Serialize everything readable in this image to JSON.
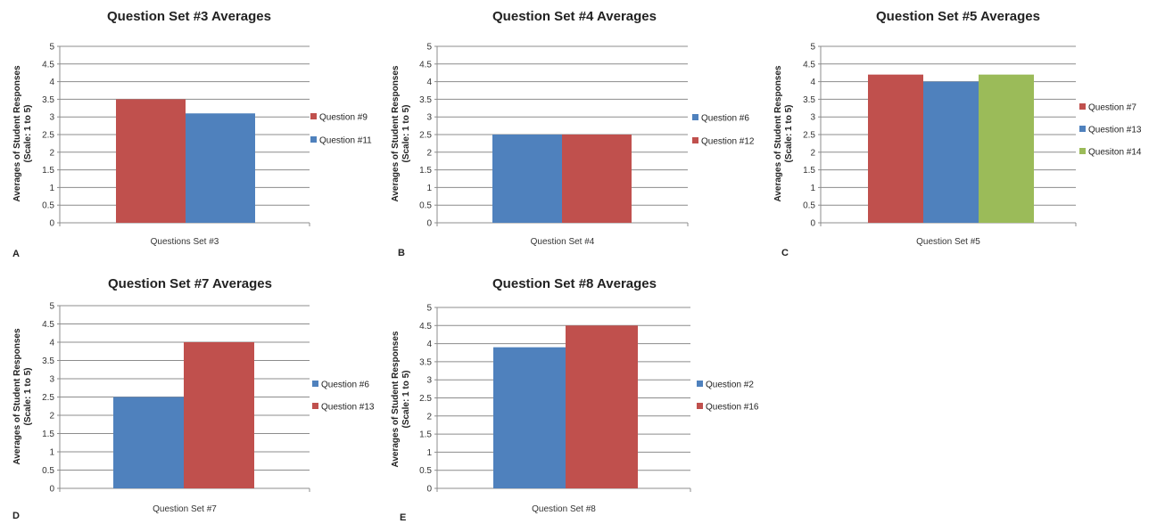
{
  "chart_data": [
    {
      "panel": "A",
      "type": "bar",
      "title": "Question Set #3 Averages",
      "ylabel": "Averages of Student Responses (Scale: 1 to 5)",
      "category": "Questions Set #3",
      "ylim": [
        0,
        5
      ],
      "yticks": [
        "0",
        "0.5",
        "1",
        "1.5",
        "2",
        "2.5",
        "3",
        "3.5",
        "4",
        "4.5",
        "5"
      ],
      "grid": true,
      "legend_position": "right",
      "series": [
        {
          "name": "Question #9",
          "value": 3.5,
          "color": "#c0504d"
        },
        {
          "name": "Question #11",
          "value": 3.1,
          "color": "#4f81bd"
        }
      ]
    },
    {
      "panel": "B",
      "type": "bar",
      "title": "Question Set #4 Averages",
      "ylabel": "Averages of Student Responses (Scale: 1 to 5)",
      "category": "Question Set #4",
      "ylim": [
        0,
        5
      ],
      "yticks": [
        "0",
        "0.5",
        "1",
        "1.5",
        "2",
        "2.5",
        "3",
        "3.5",
        "4",
        "4.5",
        "5"
      ],
      "grid": true,
      "legend_position": "right",
      "series": [
        {
          "name": "Question #6",
          "value": 2.5,
          "color": "#4f81bd"
        },
        {
          "name": "Question #12",
          "value": 2.5,
          "color": "#c0504d"
        }
      ]
    },
    {
      "panel": "C",
      "type": "bar",
      "title": "Question Set #5 Averages",
      "ylabel": "Averages of Student Responses (Scale: 1 to 5)",
      "category": "Question Set #5",
      "ylim": [
        0,
        5
      ],
      "yticks": [
        "0",
        "0.5",
        "1",
        "1.5",
        "2",
        "2.5",
        "3",
        "3.5",
        "4",
        "4.5",
        "5"
      ],
      "grid": true,
      "legend_position": "right",
      "series": [
        {
          "name": "Question #7",
          "value": 4.2,
          "color": "#c0504d"
        },
        {
          "name": "Question #13",
          "value": 4.0,
          "color": "#4f81bd"
        },
        {
          "name": "Quesiton #14",
          "value": 4.2,
          "color": "#9bbb59"
        }
      ]
    },
    {
      "panel": "D",
      "type": "bar",
      "title": "Question Set #7 Averages",
      "ylabel": "Averages of Student Responses (Scale: 1 to 5)",
      "category": "Question Set #7",
      "ylim": [
        0,
        5
      ],
      "yticks": [
        "0",
        "0.5",
        "1",
        "1.5",
        "2",
        "2.5",
        "3",
        "3.5",
        "4",
        "4.5",
        "5"
      ],
      "grid": true,
      "legend_position": "right",
      "series": [
        {
          "name": "Question #6",
          "value": 2.5,
          "color": "#4f81bd"
        },
        {
          "name": "Question #13",
          "value": 4.0,
          "color": "#c0504d"
        }
      ]
    },
    {
      "panel": "E",
      "type": "bar",
      "title": "Question Set #8 Averages",
      "ylabel": "Averages of Student Responses (Scale: 1 to 5)",
      "category": "Question Set #8",
      "ylim": [
        0,
        5
      ],
      "yticks": [
        "0",
        "0.5",
        "1",
        "1.5",
        "2",
        "2.5",
        "3",
        "3.5",
        "4",
        "4.5",
        "5"
      ],
      "grid": true,
      "legend_position": "right",
      "series": [
        {
          "name": "Question #2",
          "value": 3.9,
          "color": "#4f81bd"
        },
        {
          "name": "Question #16",
          "value": 4.5,
          "color": "#c0504d"
        }
      ]
    }
  ]
}
